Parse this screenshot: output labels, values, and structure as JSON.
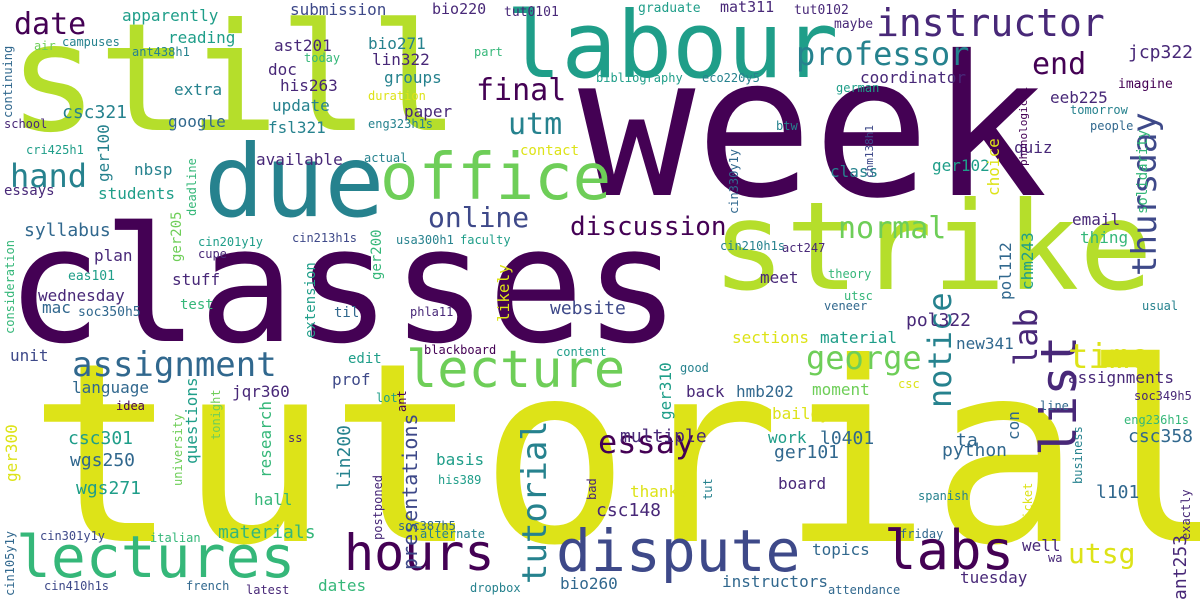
{
  "words": {
    "tutorials": "tutorials",
    "week": "week",
    "classes": "classes",
    "still": "still",
    "strike": "strike",
    "labour": "labour",
    "due": "due",
    "office": "office",
    "lectures": "lectures",
    "dispute": "dispute",
    "hours": "hours",
    "lecture": "lecture",
    "labs": "labs",
    "instructor": "instructor",
    "professor": "professor",
    "assignment": "assignment",
    "list": "list",
    "lab": "lab",
    "george": "george",
    "essay": "essay",
    "tutorial": "tutorial",
    "notice": "notice",
    "time": "time",
    "online": "online",
    "discussion": "discussion",
    "final": "final",
    "normal": "normal",
    "thursday": "thursday",
    "hand": "hand",
    "end": "end",
    "utm": "utm",
    "date": "date",
    "utsg": "utsg",
    "presentations": "presentations",
    "syllabus": "syllabus",
    "wednesday": "wednesday",
    "website": "website",
    "multiple": "multiple",
    "csc301": "csc301",
    "wgs250": "wgs250",
    "wgs271": "wgs271",
    "csc148": "csc148",
    "python": "python",
    "csc358": "csc358",
    "instructors": "instructors",
    "tuesday": "tuesday",
    "materials": "materials",
    "topics": "topics",
    "essays": "essays",
    "jcp322": "jcp322",
    "eeb225": "eeb225",
    "pol322": "pol322",
    "ger102": "ger102",
    "new341": "new341",
    "ger101": "ger101",
    "l0401": "l0401",
    "l101": "l101",
    "ant253": "ant253",
    "coordinator": "coordinator",
    "google": "google",
    "update": "update",
    "extra": "extra",
    "apparently": "apparently",
    "reading": "reading",
    "submission": "submission",
    "groups": "groups",
    "paper": "paper",
    "doc": "doc",
    "csc321": "csc321",
    "ast201": "ast201",
    "bio271": "bio271",
    "lin322": "lin322",
    "his263": "his263",
    "fsl321": "fsl321",
    "bio220": "bio220",
    "mat311": "mat311",
    "tut0101": "tut0101",
    "tut0102": "tut0102",
    "graduate": "graduate",
    "maybe": "maybe",
    "imagine": "imagine",
    "ger100": "ger100",
    "nbsp": "nbsp",
    "students": "students",
    "available": "available",
    "contact": "contact",
    "quiz": "quiz",
    "class": "class",
    "choice": "choice",
    "solidarity": "solidarity",
    "email": "email",
    "thing": "thing",
    "chm243": "chm243",
    "pol112": "pol112",
    "meet": "meet",
    "stuff": "stuff",
    "plan": "plan",
    "mac": "mac",
    "unit": "unit",
    "language": "language",
    "questions": "questions",
    "research": "research",
    "jqr360": "jqr360",
    "prof": "prof",
    "edit": "edit",
    "lin200": "lin200",
    "basis": "basis",
    "thanks": "thanks",
    "back": "back",
    "hmb202": "hmb202",
    "moment": "moment",
    "bailey": "bailey",
    "work": "work",
    "board": "board",
    "assignments": "assignments",
    "ta": "ta",
    "con": "con",
    "sections": "sections",
    "material": "material",
    "hall": "hall",
    "ger300": "ger300",
    "dates": "dates",
    "bio260": "bio260",
    "well": "well",
    "likely": "likely",
    "extension": "extension",
    "til": "til",
    "test": "test",
    "ger200": "ger200",
    "ger205": "ger205",
    "eas101": "eas101",
    "soc350h5": "soc350h5",
    "cin201y1y": "cin201y1y",
    "cin213h1s": "cin213h1s",
    "usa300h1": "usa300h1",
    "faculty": "faculty",
    "act247": "act247",
    "cin210h1s": "cin210h1s",
    "theory": "theory",
    "utsc": "utsc",
    "veneer": "veneer",
    "usual": "usual",
    "soc349h5": "soc349h5",
    "eng236h1s": "eng236h1s",
    "people": "people",
    "btw": "btw",
    "chm138h1": "chm138h1",
    "cin330y1y": "cin330y1y",
    "phonological": "phonological",
    "tomorrow": "tomorrow",
    "german": "german",
    "eco220y5": "eco220y5",
    "bibliography": "bibliography",
    "duration": "duration",
    "eng323h1s": "eng323h1s",
    "part": "part",
    "today": "today",
    "ant438h1": "ant438h1",
    "campuses": "campuses",
    "air": "air",
    "continuing": "continuing",
    "school": "school",
    "cri425h1": "cri425h1",
    "actual": "actual",
    "deadline": "deadline",
    "cupe": "cupe",
    "consideration": "consideration",
    "phla11": "phla11",
    "blackboard": "blackboard",
    "content": "content",
    "good": "good",
    "csc": "csc",
    "idea": "idea",
    "tonight": "tonight",
    "ss": "ss",
    "lot": "lot",
    "ant": "ant",
    "university": "university",
    "postponed": "postponed",
    "soc387h5": "soc387h5",
    "his389": "his389",
    "bad": "bad",
    "alternate": "alternate",
    "tut": "tut",
    "line": "line",
    "business": "business",
    "picket": "picket",
    "exactly": "exactly",
    "spanish": "spanish",
    "friday": "friday",
    "wa": "wa",
    "attendance": "attendance",
    "dropbox": "dropbox",
    "latest": "latest",
    "french": "french",
    "italian": "italian",
    "cin301y1y": "cin301y1y",
    "cin105y1y": "cin105y1y",
    "cin410h1s": "cin410h1s",
    "ger310": "ger310"
  }
}
